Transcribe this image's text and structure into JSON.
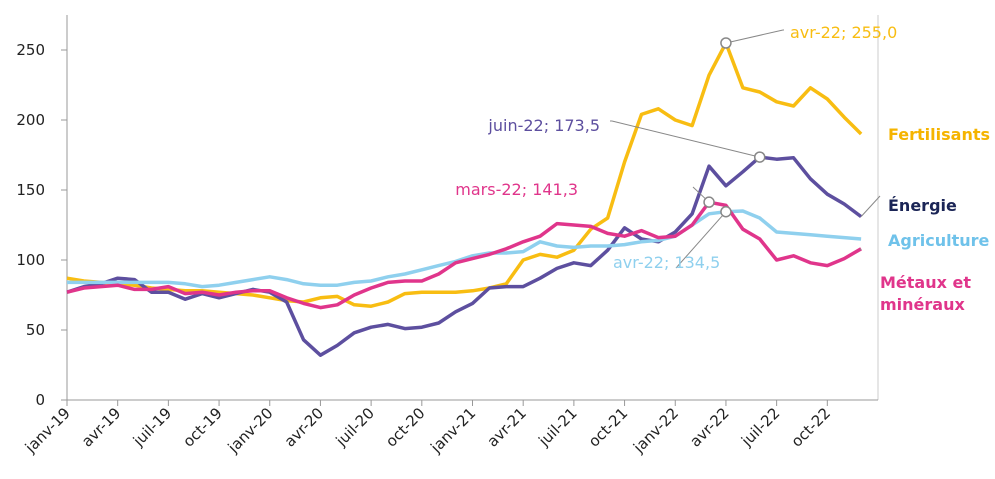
{
  "chart_data": {
    "type": "line",
    "categories": [
      "janv-19",
      null,
      null,
      "avr-19",
      null,
      null,
      "juil-19",
      null,
      null,
      "oct-19",
      null,
      null,
      "janv-20",
      null,
      null,
      "avr-20",
      null,
      null,
      "juil-20",
      null,
      null,
      "oct-20",
      null,
      null,
      "janv-21",
      null,
      null,
      "avr-21",
      null,
      null,
      "juil-21",
      null,
      null,
      "oct-21",
      null,
      null,
      "janv-22",
      null,
      null,
      "avr-22",
      null,
      null,
      "juil-22",
      null,
      null,
      "oct-22",
      null,
      null
    ],
    "ylim": [
      0,
      275
    ],
    "yticks": [
      0,
      50,
      100,
      150,
      200,
      250
    ],
    "series": [
      {
        "name": "Fertilisants",
        "color": "#f8bd12",
        "label_color": "#f5b400",
        "values": [
          87,
          85,
          84,
          83,
          82,
          80,
          79,
          78,
          78,
          77,
          76,
          75,
          73,
          71,
          70,
          73,
          74,
          68,
          67,
          70,
          76,
          77,
          77,
          77,
          78,
          80,
          83,
          100,
          104,
          102,
          107,
          122,
          130,
          170,
          204,
          208,
          200,
          196,
          232,
          255,
          223,
          220,
          213,
          210,
          223,
          215,
          202,
          190
        ],
        "value_labels": [
          null,
          null,
          null,
          null,
          null,
          null,
          null,
          null,
          null,
          null,
          null,
          null,
          null,
          null,
          null,
          null,
          null,
          null,
          null,
          null,
          null,
          null,
          null,
          null,
          null,
          null,
          null,
          null,
          null,
          null,
          null,
          null,
          null,
          null,
          null,
          null,
          null,
          null,
          null,
          "avr-22; 255,0",
          null,
          null,
          null,
          null,
          null,
          null,
          null,
          null
        ]
      },
      {
        "name": "Énergie",
        "color": "#5d4f9f",
        "label_color": "#1b2556",
        "values": [
          77,
          81,
          83,
          87,
          86,
          77,
          77,
          72,
          76,
          73,
          76,
          79,
          77,
          70,
          43,
          32,
          39,
          48,
          52,
          54,
          51,
          52,
          55,
          63,
          69,
          80,
          81,
          81,
          87,
          94,
          98,
          96,
          107,
          123,
          115,
          113,
          120,
          133,
          167,
          153,
          163,
          173.5,
          172,
          173,
          158,
          147,
          140,
          131
        ],
        "value_labels": [
          null,
          null,
          null,
          null,
          null,
          null,
          null,
          null,
          null,
          null,
          null,
          null,
          null,
          null,
          null,
          null,
          null,
          null,
          null,
          null,
          null,
          null,
          null,
          null,
          null,
          null,
          null,
          null,
          null,
          null,
          null,
          null,
          null,
          null,
          null,
          null,
          null,
          null,
          null,
          null,
          null,
          "juin-22; 173,5",
          null,
          null,
          null,
          null,
          null,
          null
        ]
      },
      {
        "name": "Agriculture",
        "color": "#8fd0ee",
        "label_color": "#6fc2ea",
        "values": [
          84,
          84,
          84,
          84,
          84,
          84,
          84,
          83,
          81,
          82,
          84,
          86,
          88,
          86,
          83,
          82,
          82,
          84,
          85,
          88,
          90,
          93,
          96,
          99,
          103,
          105,
          105,
          106,
          113,
          110,
          109,
          110,
          110,
          111,
          113,
          114,
          117,
          125,
          133,
          134.5,
          135,
          130,
          120,
          119,
          118,
          117,
          116,
          115
        ],
        "value_labels": [
          null,
          null,
          null,
          null,
          null,
          null,
          null,
          null,
          null,
          null,
          null,
          null,
          null,
          null,
          null,
          null,
          null,
          null,
          null,
          null,
          null,
          null,
          null,
          null,
          null,
          null,
          null,
          null,
          null,
          null,
          null,
          null,
          null,
          null,
          null,
          null,
          null,
          null,
          null,
          "avr-22; 134,5",
          null,
          null,
          null,
          null,
          null,
          null,
          null,
          null
        ]
      },
      {
        "name": "Métaux et minéraux",
        "color": "#e0358b",
        "label_color": "#e0358b",
        "values": [
          77,
          80,
          81,
          82,
          79,
          79,
          81,
          76,
          77,
          75,
          77,
          78,
          78,
          73,
          69,
          66,
          68,
          75,
          80,
          84,
          85,
          85,
          90,
          98,
          101,
          104,
          108,
          113,
          117,
          126,
          125,
          124,
          119,
          117,
          121,
          116,
          117,
          125,
          141.3,
          139,
          122,
          115,
          100,
          103,
          98,
          96,
          101,
          108
        ],
        "value_labels": [
          null,
          null,
          null,
          null,
          null,
          null,
          null,
          null,
          null,
          null,
          null,
          null,
          null,
          null,
          null,
          null,
          null,
          null,
          null,
          null,
          null,
          null,
          null,
          null,
          null,
          null,
          null,
          null,
          null,
          null,
          null,
          null,
          null,
          null,
          null,
          null,
          null,
          null,
          "mars-22; 141,3",
          null,
          null,
          null,
          null,
          null,
          null,
          null,
          null,
          null
        ]
      }
    ]
  }
}
